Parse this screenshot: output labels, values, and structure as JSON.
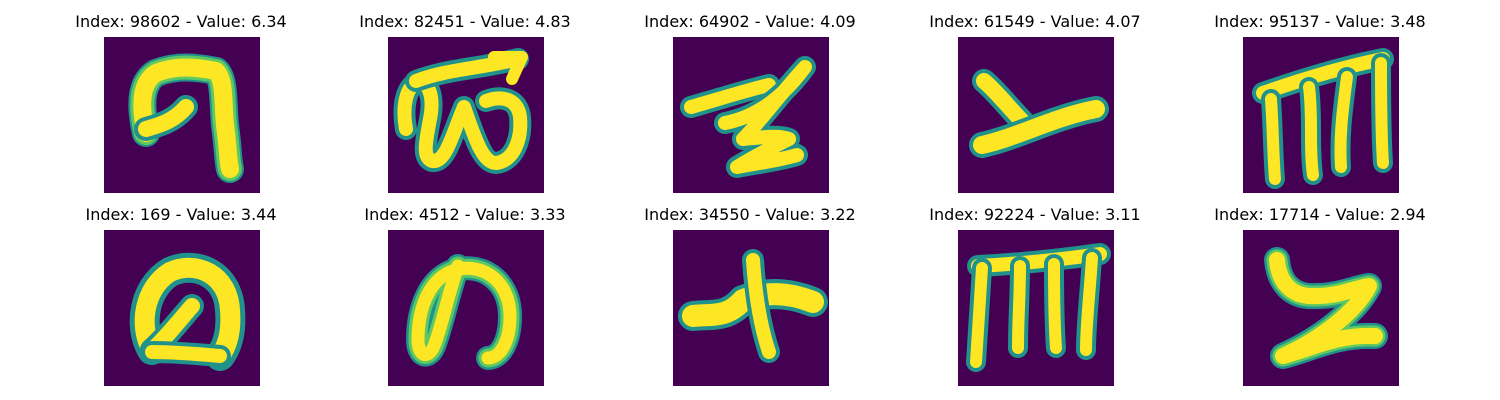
{
  "colors": {
    "background": "#440154",
    "edge": "#21918c",
    "mid": "#5ec962",
    "stroke": "#fde725"
  },
  "tiles": [
    {
      "title": "Index: 98602 - Value: 6.34",
      "glyph_icon": "handwritten-glyph-icon"
    },
    {
      "title": "Index: 82451 - Value: 4.83",
      "glyph_icon": "handwritten-glyph-icon"
    },
    {
      "title": "Index: 64902 - Value: 4.09",
      "glyph_icon": "handwritten-glyph-icon"
    },
    {
      "title": "Index: 61549 - Value: 4.07",
      "glyph_icon": "handwritten-glyph-icon"
    },
    {
      "title": "Index: 95137 - Value: 3.48",
      "glyph_icon": "handwritten-glyph-icon"
    },
    {
      "title": "Index: 169 - Value: 3.44",
      "glyph_icon": "handwritten-glyph-icon"
    },
    {
      "title": "Index: 4512 - Value: 3.33",
      "glyph_icon": "handwritten-glyph-icon"
    },
    {
      "title": "Index: 34550 - Value: 3.22",
      "glyph_icon": "handwritten-glyph-icon"
    },
    {
      "title": "Index: 92224 - Value: 3.11",
      "glyph_icon": "handwritten-glyph-icon"
    },
    {
      "title": "Index: 17714 - Value: 2.94",
      "glyph_icon": "handwritten-glyph-icon"
    }
  ]
}
